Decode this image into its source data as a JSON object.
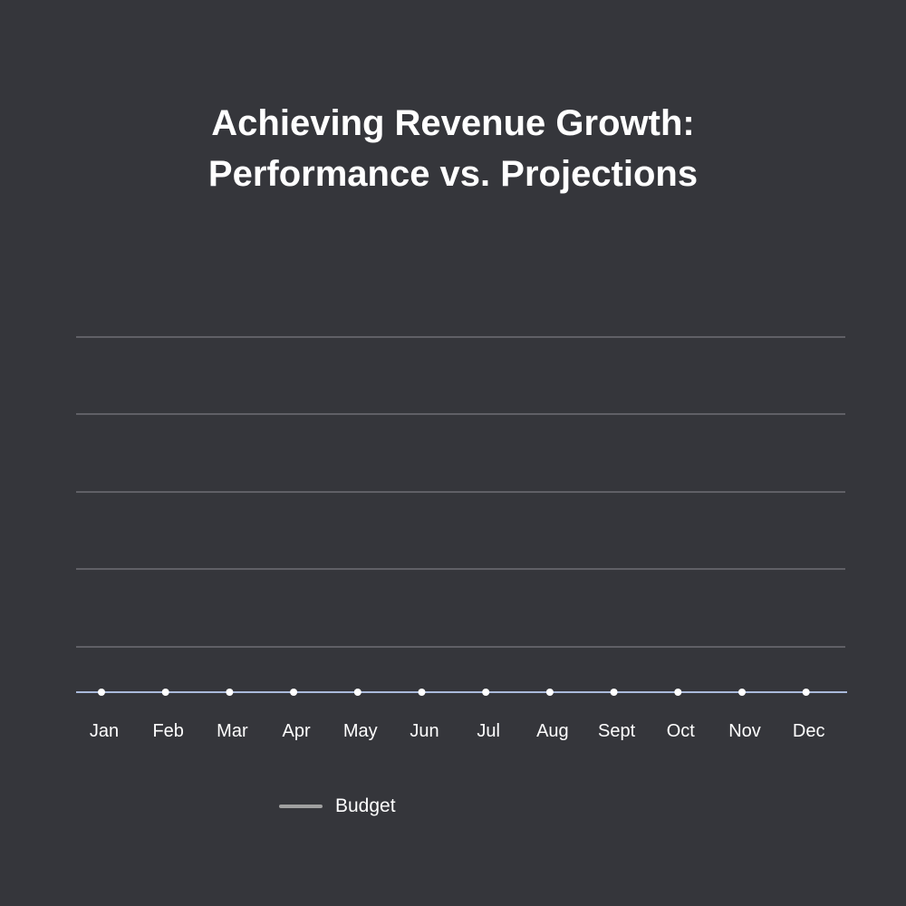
{
  "chart_data": {
    "type": "line",
    "title": "Achieving Revenue Growth:",
    "subtitle": "Performance vs. Projections",
    "categories": [
      "Jan",
      "Feb",
      "Mar",
      "Apr",
      "May",
      "Jun",
      "Jul",
      "Aug",
      "Sept",
      "Oct",
      "Nov",
      "Dec"
    ],
    "series": [
      {
        "name": "Budget",
        "values": [
          0,
          0,
          0,
          0,
          0,
          0,
          0,
          0,
          0,
          0,
          0,
          0
        ],
        "line_color": "#a9b9da",
        "marker_color": "#ffffff",
        "legend_color": "#a0a0a0"
      }
    ],
    "ylim": [
      0,
      100
    ],
    "grid": true,
    "legend_position": "bottom-left"
  },
  "colors": {
    "background": "#35363b",
    "gridline": "#8a8b90",
    "text": "#ffffff"
  }
}
